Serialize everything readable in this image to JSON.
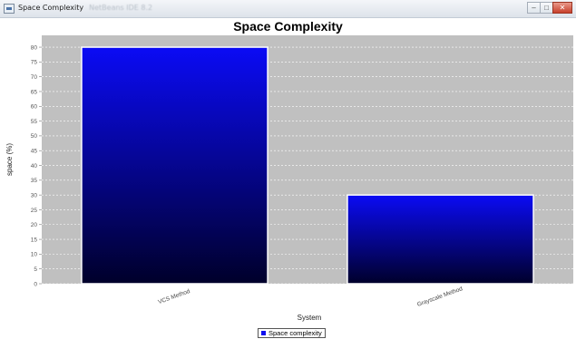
{
  "window": {
    "title": "Space Complexity",
    "subtitle": "NetBeans IDE 8.2"
  },
  "chart_data": {
    "type": "bar",
    "title": "Space Complexity",
    "xlabel": "System",
    "ylabel": "space (%)",
    "categories": [
      "VCS Method",
      "Grayscale Method"
    ],
    "series": [
      {
        "name": "Space complexity",
        "values": [
          80,
          30
        ]
      }
    ],
    "ylim": [
      0,
      84
    ],
    "yticks": [
      0,
      5,
      10,
      15,
      20,
      25,
      30,
      35,
      40,
      45,
      50,
      55,
      60,
      65,
      70,
      75,
      80
    ],
    "grid": true,
    "legend": "bottom",
    "colors": {
      "bar_top": "#0b0bf5",
      "bar_bottom": "#00002a",
      "plot_background": "#c0c0c0"
    }
  }
}
